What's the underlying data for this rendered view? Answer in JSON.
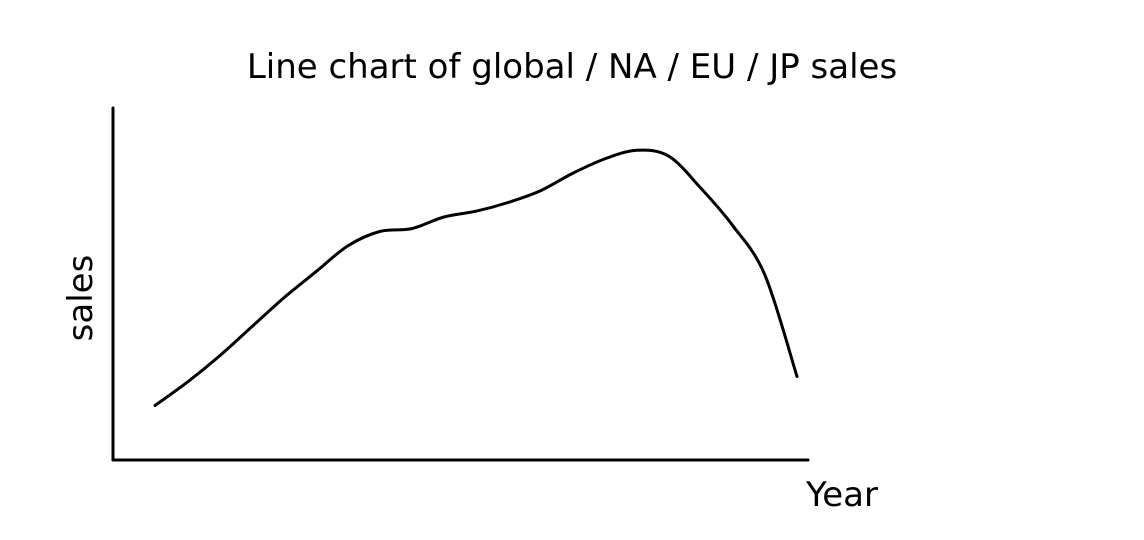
{
  "chart_data": {
    "type": "line",
    "title": "Line chart of global / NA / EU / JP  sales",
    "xlabel": "Year",
    "ylabel": "sales",
    "grid": false,
    "series": [
      {
        "x": [
          0,
          1,
          2,
          3,
          4,
          5,
          6,
          7,
          8,
          9,
          10,
          11,
          12,
          13,
          14,
          15,
          16,
          17,
          18,
          19,
          20
        ],
        "values": [
          5,
          13,
          22,
          32,
          42,
          51,
          60,
          65,
          66,
          70,
          72,
          75,
          79,
          85,
          90,
          93,
          91,
          80,
          67,
          50,
          15
        ]
      }
    ],
    "xlim": [
      0,
      20
    ],
    "ylim": [
      0,
      100
    ],
    "colors": {
      "ink": "#000000",
      "background": "#ffffff"
    }
  }
}
